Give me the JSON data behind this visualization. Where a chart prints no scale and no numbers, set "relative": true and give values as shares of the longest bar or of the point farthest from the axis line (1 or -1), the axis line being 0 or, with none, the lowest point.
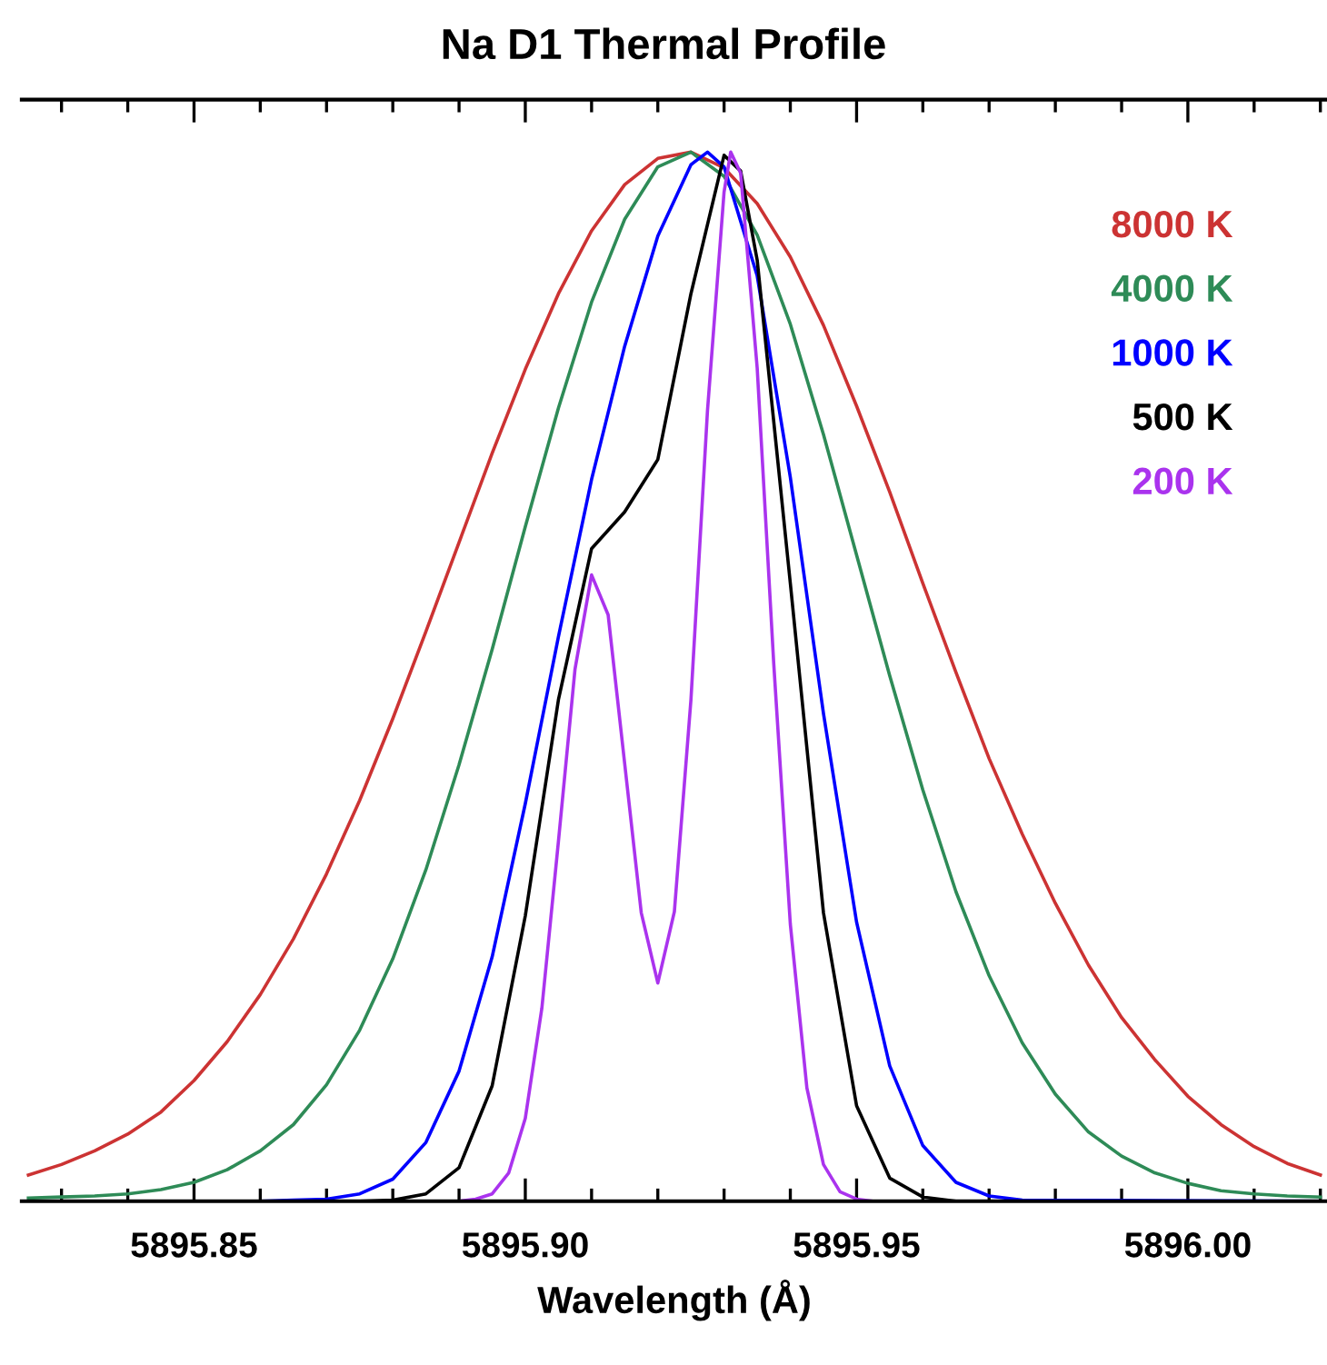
{
  "chart_data": {
    "type": "line",
    "title": "Na D1 Thermal Profile",
    "xlabel": "Wavelength (Å)",
    "relative": true,
    "xlim": [
      5895.824,
      5896.021
    ],
    "xticks": [
      {
        "value": 5895.83,
        "label": null
      },
      {
        "value": 5895.84,
        "label": null
      },
      {
        "value": 5895.85,
        "label": "5895.85"
      },
      {
        "value": 5895.86,
        "label": null
      },
      {
        "value": 5895.87,
        "label": null
      },
      {
        "value": 5895.88,
        "label": null
      },
      {
        "value": 5895.89,
        "label": null
      },
      {
        "value": 5895.9,
        "label": "5895.90"
      },
      {
        "value": 5895.91,
        "label": null
      },
      {
        "value": 5895.92,
        "label": null
      },
      {
        "value": 5895.93,
        "label": null
      },
      {
        "value": 5895.94,
        "label": null
      },
      {
        "value": 5895.95,
        "label": "5895.95"
      },
      {
        "value": 5895.96,
        "label": null
      },
      {
        "value": 5895.97,
        "label": null
      },
      {
        "value": 5895.98,
        "label": null
      },
      {
        "value": 5895.99,
        "label": null
      },
      {
        "value": 5896.0,
        "label": "5896.00"
      },
      {
        "value": 5896.01,
        "label": null
      },
      {
        "value": 5896.02,
        "label": null
      }
    ],
    "x": [
      5895.825,
      5895.83,
      5895.835,
      5895.84,
      5895.845,
      5895.85,
      5895.855,
      5895.86,
      5895.865,
      5895.87,
      5895.875,
      5895.88,
      5895.885,
      5895.89,
      5895.895,
      5895.9,
      5895.905,
      5895.91,
      5895.915,
      5895.92,
      5895.925,
      5895.93,
      5895.935,
      5895.94,
      5895.945,
      5895.95,
      5895.955,
      5895.96,
      5895.965,
      5895.97,
      5895.975,
      5895.98,
      5895.985,
      5895.99,
      5895.995,
      5896.0,
      5896.005,
      5896.01,
      5896.015,
      5896.02
    ],
    "series": [
      {
        "name": "8000 K",
        "color": "#cc3333",
        "values": [
          0.025,
          0.035,
          0.048,
          0.064,
          0.085,
          0.115,
          0.152,
          0.197,
          0.25,
          0.312,
          0.382,
          0.46,
          0.543,
          0.628,
          0.713,
          0.793,
          0.865,
          0.925,
          0.969,
          0.994,
          1.0,
          0.985,
          0.951,
          0.9,
          0.835,
          0.758,
          0.676,
          0.589,
          0.504,
          0.422,
          0.35,
          0.284,
          0.225,
          0.175,
          0.135,
          0.1,
          0.073,
          0.052,
          0.036,
          0.025
        ]
      },
      {
        "name": "4000 K",
        "color": "#2e8b57",
        "values": [
          0.003,
          0.004,
          0.005,
          0.007,
          0.011,
          0.018,
          0.03,
          0.048,
          0.073,
          0.111,
          0.163,
          0.231,
          0.316,
          0.416,
          0.526,
          0.643,
          0.756,
          0.857,
          0.936,
          0.986,
          1.0,
          0.977,
          0.921,
          0.836,
          0.731,
          0.616,
          0.501,
          0.392,
          0.295,
          0.215,
          0.151,
          0.102,
          0.066,
          0.043,
          0.027,
          0.017,
          0.01,
          0.007,
          0.005,
          0.004
        ]
      },
      {
        "name": "1000 K",
        "color": "#0000ff",
        "x": [
          5895.824,
          5895.86,
          5895.865,
          5895.87,
          5895.875,
          5895.88,
          5895.885,
          5895.89,
          5895.895,
          5895.9,
          5895.905,
          5895.91,
          5895.915,
          5895.92,
          5895.925,
          5895.9275,
          5895.93,
          5895.935,
          5895.94,
          5895.945,
          5895.95,
          5895.955,
          5895.96,
          5895.965,
          5895.97,
          5895.975,
          5896.021
        ],
        "values": [
          0,
          0,
          0.001,
          0.002,
          0.007,
          0.021,
          0.056,
          0.124,
          0.233,
          0.379,
          0.538,
          0.688,
          0.815,
          0.92,
          0.988,
          1.0,
          0.986,
          0.882,
          0.69,
          0.465,
          0.266,
          0.129,
          0.053,
          0.018,
          0.005,
          0.001,
          0
        ]
      },
      {
        "name": "500 K",
        "color": "#000000",
        "x": [
          5895.824,
          5895.875,
          5895.88,
          5895.885,
          5895.89,
          5895.895,
          5895.9,
          5895.905,
          5895.91,
          5895.915,
          5895.92,
          5895.925,
          5895.93,
          5895.9325,
          5895.935,
          5895.94,
          5895.945,
          5895.95,
          5895.955,
          5895.96,
          5895.965,
          5896.021
        ],
        "values": [
          0,
          0,
          0.001,
          0.007,
          0.032,
          0.11,
          0.272,
          0.478,
          0.622,
          0.657,
          0.707,
          0.865,
          0.997,
          0.982,
          0.897,
          0.589,
          0.275,
          0.091,
          0.022,
          0.004,
          0,
          0
        ]
      },
      {
        "name": "200 K",
        "color": "#aa33ee",
        "x": [
          5895.89,
          5895.8925,
          5895.895,
          5895.8975,
          5895.9,
          5895.9025,
          5895.905,
          5895.9075,
          5895.91,
          5895.9125,
          5895.915,
          5895.9175,
          5895.92,
          5895.9225,
          5895.925,
          5895.9275,
          5895.93,
          5895.931,
          5895.9325,
          5895.935,
          5895.9375,
          5895.94,
          5895.9425,
          5895.945,
          5895.9475,
          5895.95,
          5895.9525
        ],
        "values": [
          0,
          0.002,
          0.007,
          0.027,
          0.079,
          0.184,
          0.343,
          0.507,
          0.597,
          0.559,
          0.417,
          0.275,
          0.208,
          0.276,
          0.478,
          0.754,
          0.962,
          1.0,
          0.98,
          0.794,
          0.512,
          0.264,
          0.108,
          0.035,
          0.009,
          0.002,
          0
        ]
      }
    ],
    "legend": "top right",
    "grid": false
  }
}
